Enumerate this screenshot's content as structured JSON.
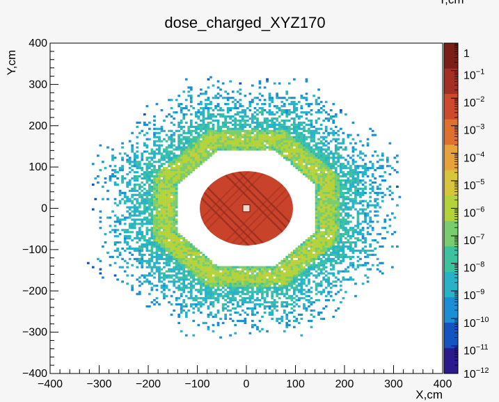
{
  "chart_data": {
    "type": "heatmap",
    "title": "dose_charged_XYZ170",
    "top_right_cut_label": "Y,cm",
    "xlabel": "X,cm",
    "ylabel": "Y,cm",
    "xlim": [
      -400,
      400
    ],
    "ylim": [
      -400,
      400
    ],
    "x_ticks": [
      -400,
      -300,
      -200,
      -100,
      0,
      100,
      200,
      300,
      400
    ],
    "y_ticks": [
      -400,
      -300,
      -200,
      -100,
      0,
      100,
      200,
      300,
      400
    ],
    "x_tick_labels": [
      "−400",
      "−300",
      "−200",
      "−100",
      "0",
      "100",
      "200",
      "300",
      "400"
    ],
    "y_tick_labels": [
      "−400",
      "−300",
      "−200",
      "−100",
      "0",
      "100",
      "200",
      "300",
      "400"
    ],
    "z_scale": "log",
    "z_range": [
      1e-12,
      1
    ],
    "colorbar_ticks": [
      {
        "base": "1",
        "exp": ""
      },
      {
        "base": "10",
        "exp": "−1"
      },
      {
        "base": "10",
        "exp": "−2"
      },
      {
        "base": "10",
        "exp": "−3"
      },
      {
        "base": "10",
        "exp": "−4"
      },
      {
        "base": "10",
        "exp": "−5"
      },
      {
        "base": "10",
        "exp": "−6"
      },
      {
        "base": "10",
        "exp": "−7"
      },
      {
        "base": "10",
        "exp": "−8"
      },
      {
        "base": "10",
        "exp": "−9"
      },
      {
        "base": "10",
        "exp": "−10"
      },
      {
        "base": "10",
        "exp": "−11"
      },
      {
        "base": "10",
        "exp": "−12"
      }
    ],
    "colormap": [
      "#2a1a8c",
      "#1453c2",
      "#1b8fd6",
      "#27b2c8",
      "#3dc2a0",
      "#79cd6e",
      "#b4d33a",
      "#d9c53a",
      "#e7a23c",
      "#e0702e",
      "#cd4a2c",
      "#a33022",
      "#7a1f18"
    ],
    "regions": [
      {
        "name": "core",
        "shape": "ellipse",
        "center": [
          0,
          0
        ],
        "radii": [
          95,
          90
        ],
        "dose": 1
      },
      {
        "name": "inner_gap",
        "shape": "octagon",
        "inner_radius": 140,
        "dose": 0
      },
      {
        "name": "ring",
        "shape": "octagon",
        "inner_radius": 140,
        "outer_radius": 190,
        "dose_range": [
          1e-07,
          0.0001
        ]
      },
      {
        "name": "halo",
        "shape": "octagon",
        "inner_radius": 190,
        "outer_radius": 330,
        "dose_range": [
          1e-11,
          1e-08
        ]
      }
    ],
    "grid": false
  }
}
